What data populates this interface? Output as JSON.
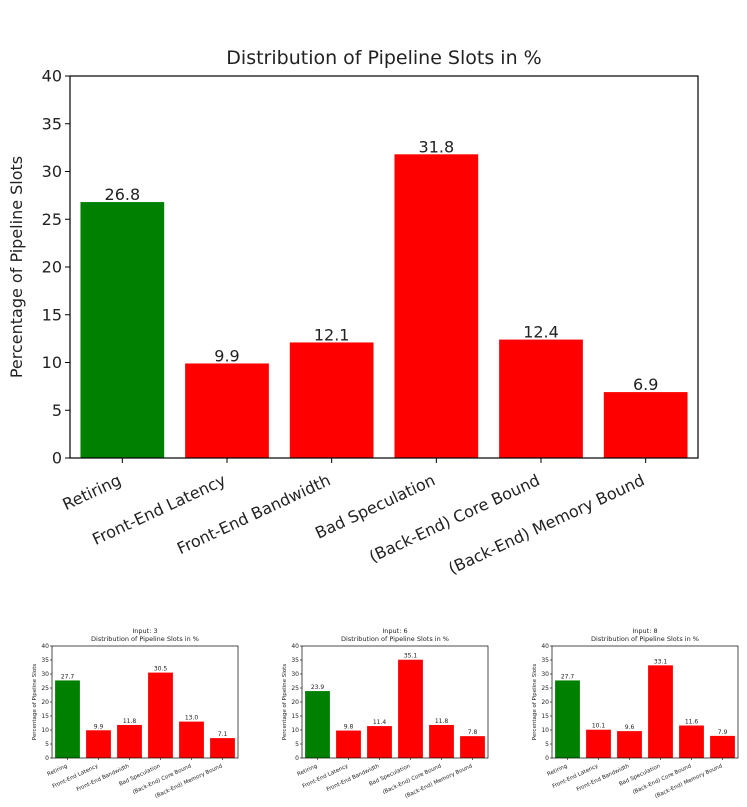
{
  "colors": {
    "positive": "#008000",
    "negative": "#ff0000",
    "axis": "#000000",
    "text": "#222222"
  },
  "chart_data": [
    {
      "type": "bar",
      "title": "Distribution of Pipeline Slots in %",
      "subtitle": "",
      "xlabel": "",
      "ylabel": "Percentage of Pipeline Slots",
      "ylim": [
        0,
        40
      ],
      "yticks": [
        0,
        5,
        10,
        15,
        20,
        25,
        30,
        35,
        40
      ],
      "grid": false,
      "categories": [
        "Retiring",
        "Front-End Latency",
        "Front-End Bandwidth",
        "Bad Speculation",
        "(Back-End) Core Bound",
        "(Back-End) Memory Bound"
      ],
      "values": [
        26.8,
        9.9,
        12.1,
        31.8,
        12.4,
        6.9
      ],
      "value_labels": [
        "26.8",
        "9.9",
        "12.1",
        "31.8",
        "12.4",
        "6.9"
      ],
      "bar_colors": [
        "green",
        "red",
        "red",
        "red",
        "red",
        "red"
      ]
    },
    {
      "type": "bar",
      "title": "Distribution of Pipeline Slots in %",
      "subtitle": "Input: 3",
      "xlabel": "",
      "ylabel": "Percentage of Pipeline Slots",
      "ylim": [
        0,
        40
      ],
      "yticks": [
        0,
        5,
        10,
        15,
        20,
        25,
        30,
        35,
        40
      ],
      "grid": false,
      "categories": [
        "Retiring",
        "Front-End Latency",
        "Front-End Bandwidth",
        "Bad Speculation",
        "(Back-End) Core Bound",
        "(Back-End) Memory Bound"
      ],
      "values": [
        27.7,
        9.9,
        11.8,
        30.5,
        13.0,
        7.1
      ],
      "value_labels": [
        "27.7",
        "9.9",
        "11.8",
        "30.5",
        "13.0",
        "7.1"
      ],
      "bar_colors": [
        "green",
        "red",
        "red",
        "red",
        "red",
        "red"
      ]
    },
    {
      "type": "bar",
      "title": "Distribution of Pipeline Slots in %",
      "subtitle": "Input: 6",
      "xlabel": "",
      "ylabel": "Percentage of Pipeline Slots",
      "ylim": [
        0,
        40
      ],
      "yticks": [
        0,
        5,
        10,
        15,
        20,
        25,
        30,
        35,
        40
      ],
      "grid": false,
      "categories": [
        "Retiring",
        "Front-End Latency",
        "Front-End Bandwidth",
        "Bad Speculation",
        "(Back-End) Core Bound",
        "(Back-End) Memory Bound"
      ],
      "values": [
        23.9,
        9.8,
        11.4,
        35.1,
        11.8,
        7.8
      ],
      "value_labels": [
        "23.9",
        "9.8",
        "11.4",
        "35.1",
        "11.8",
        "7.8"
      ],
      "bar_colors": [
        "green",
        "red",
        "red",
        "red",
        "red",
        "red"
      ]
    },
    {
      "type": "bar",
      "title": "Distribution of Pipeline Slots in %",
      "subtitle": "Input: 8",
      "xlabel": "",
      "ylabel": "Percentage of Pipeline Slots",
      "ylim": [
        0,
        40
      ],
      "yticks": [
        0,
        5,
        10,
        15,
        20,
        25,
        30,
        35,
        40
      ],
      "grid": false,
      "categories": [
        "Retiring",
        "Front-End Latency",
        "Front-End Bandwidth",
        "Bad Speculation",
        "(Back-End) Core Bound",
        "(Back-End) Memory Bound"
      ],
      "values": [
        27.7,
        10.1,
        9.6,
        33.1,
        11.6,
        7.9
      ],
      "value_labels": [
        "27.7",
        "10.1",
        "9.6",
        "33.1",
        "11.6",
        "7.9"
      ],
      "bar_colors": [
        "green",
        "red",
        "red",
        "red",
        "red",
        "red"
      ]
    }
  ]
}
